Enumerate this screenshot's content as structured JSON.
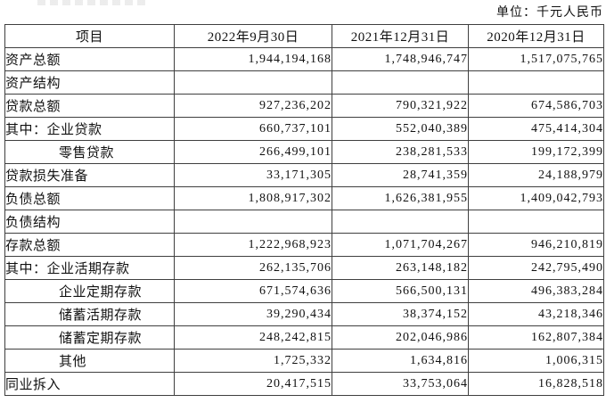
{
  "unit_label": "单位：千元人民币",
  "table": {
    "columns": [
      "项目",
      "2022年9月30日",
      "2021年12月31日",
      "2020年12月31日"
    ],
    "rows": [
      {
        "label": "资产总额",
        "indent": 0,
        "values": [
          "1,944,194,168",
          "1,748,946,747",
          "1,517,075,765"
        ]
      },
      {
        "label": "资产结构",
        "indent": 0,
        "values": [
          "",
          "",
          ""
        ]
      },
      {
        "label": "贷款总额",
        "indent": 0,
        "values": [
          "927,236,202",
          "790,321,922",
          "674,586,703"
        ]
      },
      {
        "label": "其中：企业贷款",
        "indent": 0,
        "values": [
          "660,737,101",
          "552,040,389",
          "475,414,304"
        ]
      },
      {
        "label": "零售贷款",
        "indent": 1,
        "values": [
          "266,499,101",
          "238,281,533",
          "199,172,399"
        ]
      },
      {
        "label": "贷款损失准备",
        "indent": 0,
        "values": [
          "33,171,305",
          "28,741,359",
          "24,188,979"
        ]
      },
      {
        "label": "负债总额",
        "indent": 0,
        "values": [
          "1,808,917,302",
          "1,626,381,955",
          "1,409,042,793"
        ]
      },
      {
        "label": "负债结构",
        "indent": 0,
        "values": [
          "",
          "",
          ""
        ]
      },
      {
        "label": "存款总额",
        "indent": 0,
        "values": [
          "1,222,968,923",
          "1,071,704,267",
          "946,210,819"
        ]
      },
      {
        "label": "其中：企业活期存款",
        "indent": 0,
        "values": [
          "262,135,706",
          "263,148,182",
          "242,795,490"
        ]
      },
      {
        "label": "企业定期存款",
        "indent": 1,
        "values": [
          "671,574,636",
          "566,500,131",
          "496,383,284"
        ]
      },
      {
        "label": "储蓄活期存款",
        "indent": 1,
        "values": [
          "39,290,434",
          "38,374,152",
          "43,218,346"
        ]
      },
      {
        "label": "储蓄定期存款",
        "indent": 1,
        "values": [
          "248,242,815",
          "202,046,986",
          "162,807,384"
        ]
      },
      {
        "label": "其他",
        "indent": 1,
        "values": [
          "1,725,332",
          "1,634,816",
          "1,006,315"
        ]
      },
      {
        "label": "同业拆入",
        "indent": 0,
        "values": [
          "20,417,515",
          "33,753,064",
          "16,828,518"
        ]
      }
    ]
  }
}
